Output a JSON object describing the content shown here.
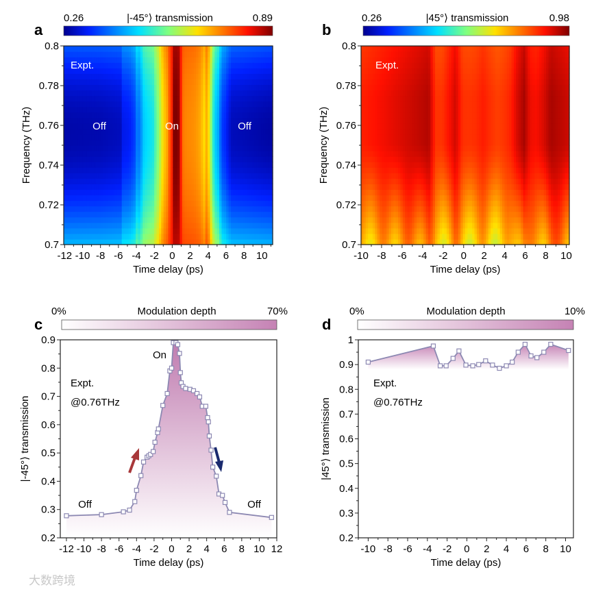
{
  "watermark": "大数跨境",
  "chart_data": [
    {
      "panel": "a",
      "type": "heatmap",
      "colorbar": {
        "title": "|-45°⟩ transmission",
        "min_label": "0.26",
        "max_label": "0.89",
        "range": [
          0.26,
          0.89
        ],
        "colormap": "jet"
      },
      "xlabel": "Time delay (ps)",
      "ylabel": "Frequency (THz)",
      "xlim": [
        -12.1,
        11.2
      ],
      "ylim": [
        0.7,
        0.8
      ],
      "xticks": [
        "-12",
        "-10",
        "-8",
        "-6",
        "-4",
        "-2",
        "0",
        "2",
        "4",
        "6",
        "8",
        "10"
      ],
      "yticks": [
        "0.7",
        "0.72",
        "0.74",
        "0.76",
        "0.78",
        "0.8"
      ],
      "annotations": {
        "expt": "Expt.",
        "off_left": "Off",
        "on": "On",
        "off_right": "Off"
      },
      "profile_source": "panel c (0.76 THz slice)"
    },
    {
      "panel": "b",
      "type": "heatmap",
      "colorbar": {
        "title": "|45°⟩ transmission",
        "min_label": "0.26",
        "max_label": "0.98",
        "range": [
          0.26,
          0.98
        ],
        "colormap": "jet"
      },
      "xlabel": "Time delay (ps)",
      "ylabel": "Frequency (THz)",
      "xlim": [
        -10,
        10.3
      ],
      "ylim": [
        0.7,
        0.8
      ],
      "xticks": [
        "-10",
        "-8",
        "-6",
        "-4",
        "-2",
        "0",
        "2",
        "4",
        "6",
        "8",
        "10"
      ],
      "yticks": [
        "0.7",
        "0.72",
        "0.74",
        "0.76",
        "0.78",
        "0.8"
      ],
      "annotations": {
        "expt": "Expt."
      },
      "profile_source": "panel d (0.76 THz slice)"
    },
    {
      "panel": "c",
      "type": "area",
      "colorbar": {
        "title": "Modulation depth",
        "min_label": "0%",
        "max_label": "70%"
      },
      "xlabel": "Time delay (ps)",
      "ylabel": "|-45°⟩ transmission",
      "xlim": [
        -12.7,
        12
      ],
      "ylim": [
        0.2,
        0.9
      ],
      "xticks": [
        "-12",
        "-10",
        "-8",
        "-6",
        "-4",
        "-2",
        "0",
        "2",
        "4",
        "6",
        "8",
        "10",
        "12"
      ],
      "yticks": [
        "0.2",
        "0.3",
        "0.4",
        "0.5",
        "0.6",
        "0.7",
        "0.8",
        "0.9"
      ],
      "annotations": {
        "expt": "Expt.",
        "freq": "@0.76THz",
        "on": "On",
        "off_left": "Off",
        "off_right": "Off"
      },
      "series": [
        {
          "name": "Expt. @0.76THz",
          "x": [
            -12,
            -8,
            -5.5,
            -4.8,
            -4.2,
            -4,
            -3.5,
            -3.2,
            -2.8,
            -2.6,
            -2.4,
            -2.1,
            -1.9,
            -1.6,
            -1.5,
            -1,
            -0.5,
            -0.2,
            0,
            0.2,
            0.5,
            0.7,
            0.9,
            1.0,
            1.1,
            1.3,
            1.6,
            2.1,
            2.5,
            2.9,
            3.2,
            3.5,
            3.9,
            4.1,
            4.2,
            4.3,
            4.5,
            4.7,
            5.1,
            5.4,
            5.8,
            6.1,
            6.6,
            11.4
          ],
          "y": [
            0.278,
            0.282,
            0.292,
            0.298,
            0.328,
            0.368,
            0.42,
            0.468,
            0.485,
            0.49,
            0.495,
            0.505,
            0.538,
            0.572,
            0.585,
            0.668,
            0.71,
            0.79,
            0.8,
            0.89,
            0.89,
            0.883,
            0.852,
            0.784,
            0.748,
            0.735,
            0.728,
            0.725,
            0.72,
            0.71,
            0.698,
            0.665,
            0.665,
            0.625,
            0.61,
            0.56,
            0.51,
            0.45,
            0.418,
            0.355,
            0.35,
            0.325,
            0.29,
            0.272
          ]
        }
      ]
    },
    {
      "panel": "d",
      "type": "area",
      "colorbar": {
        "title": "Modulation depth",
        "min_label": "0%",
        "max_label": "10%"
      },
      "xlabel": "Time delay (ps)",
      "ylabel": "|45°⟩ transmission",
      "xlim": [
        -11,
        10.8
      ],
      "ylim": [
        0.2,
        1
      ],
      "xticks": [
        "-10",
        "-8",
        "-6",
        "-4",
        "-2",
        "0",
        "2",
        "4",
        "6",
        "8",
        "10"
      ],
      "yticks": [
        "0.2",
        "0.3",
        "0.4",
        "0.5",
        "0.6",
        "0.7",
        "0.8",
        "0.9",
        "1"
      ],
      "annotations": {
        "expt": "Expt.",
        "freq": "@0.76THz"
      },
      "series": [
        {
          "name": "Expt. @0.76THz",
          "x": [
            -10,
            -3.4,
            -2.7,
            -2.1,
            -1.4,
            -0.8,
            -0.1,
            0.6,
            1.2,
            1.9,
            2.6,
            3.3,
            4,
            4.6,
            5.2,
            5.9,
            6.5,
            7.1,
            7.8,
            8.5,
            10.3
          ],
          "y": [
            0.91,
            0.975,
            0.895,
            0.895,
            0.925,
            0.955,
            0.898,
            0.895,
            0.9,
            0.915,
            0.898,
            0.885,
            0.895,
            0.91,
            0.95,
            0.982,
            0.935,
            0.928,
            0.95,
            0.982,
            0.957
          ]
        }
      ]
    }
  ]
}
